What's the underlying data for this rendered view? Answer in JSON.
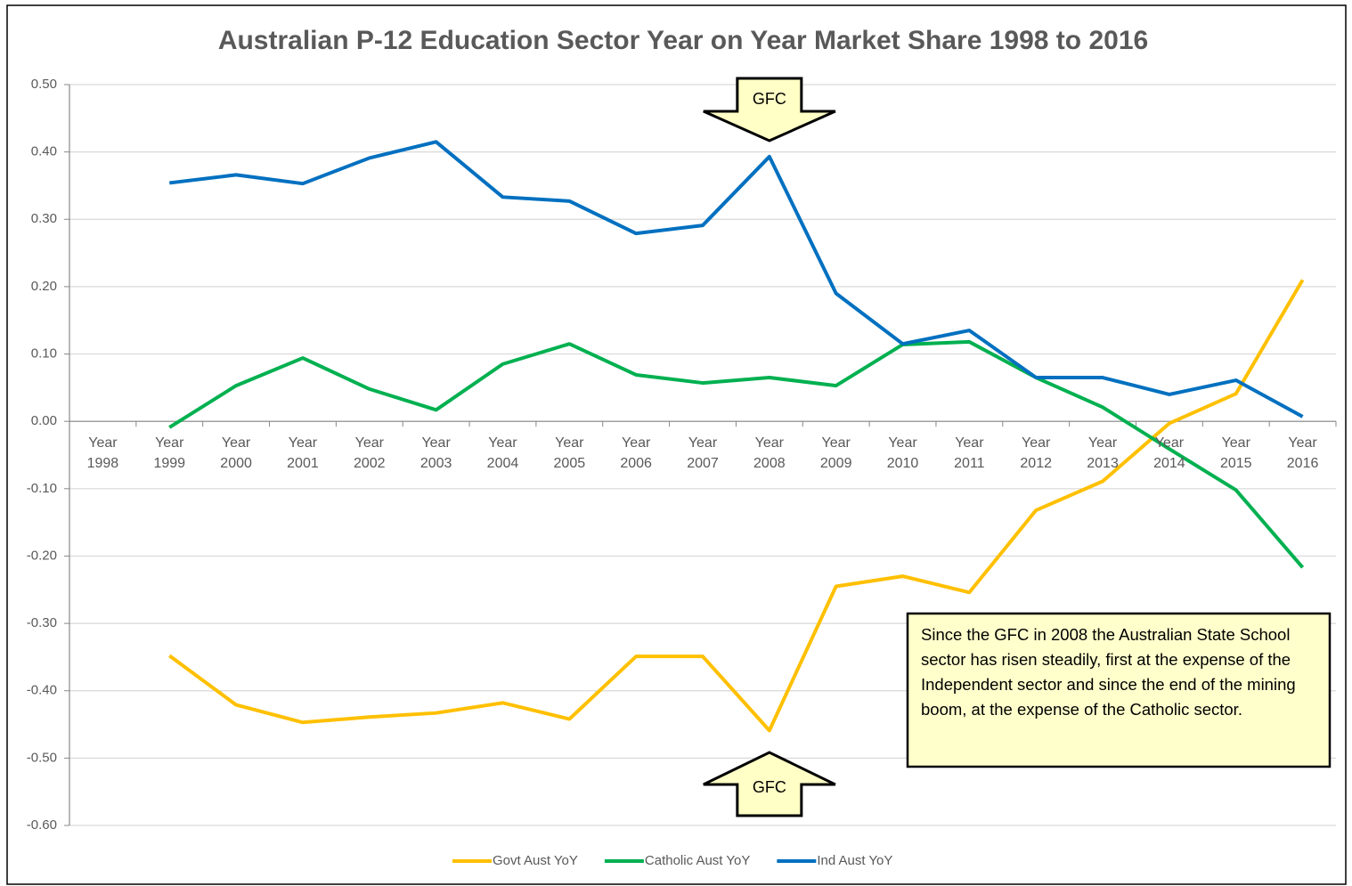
{
  "chart_data": {
    "type": "line",
    "title": "Australian P-12 Education Sector Year on Year Market Share 1998 to 2016",
    "categories": [
      "Year 1998",
      "Year 1999",
      "Year 2000",
      "Year 2001",
      "Year 2002",
      "Year 2003",
      "Year 2004",
      "Year 2005",
      "Year 2006",
      "Year 2007",
      "Year 2008",
      "Year 2009",
      "Year 2010",
      "Year 2011",
      "Year 2012",
      "Year 2013",
      "Year 2014",
      "Year 2015",
      "Year 2016"
    ],
    "series": [
      {
        "name": "Govt Aust YoY",
        "color": "#ffc000",
        "values": [
          null,
          -0.348,
          -0.421,
          -0.447,
          -0.439,
          -0.433,
          -0.418,
          -0.442,
          -0.349,
          -0.349,
          -0.459,
          -0.245,
          -0.23,
          -0.254,
          -0.132,
          -0.089,
          -0.003,
          0.041,
          0.21
        ]
      },
      {
        "name": "Catholic Aust YoY",
        "color": "#00b050",
        "values": [
          null,
          -0.009,
          0.053,
          0.094,
          0.048,
          0.017,
          0.085,
          0.115,
          0.069,
          0.057,
          0.065,
          0.053,
          0.114,
          0.118,
          0.065,
          0.021,
          -0.041,
          -0.102,
          -0.217
        ]
      },
      {
        "name": "Ind Aust YoY",
        "color": "#0070c0",
        "values": [
          null,
          0.354,
          0.366,
          0.353,
          0.391,
          0.415,
          0.333,
          0.327,
          0.279,
          0.291,
          0.393,
          0.19,
          0.115,
          0.135,
          0.065,
          0.065,
          0.04,
          0.061,
          0.007
        ]
      }
    ],
    "ylim": [
      -0.6,
      0.5
    ],
    "yticks": [
      {
        "value": 0.5,
        "label": "0.50"
      },
      {
        "value": 0.4,
        "label": "0.40"
      },
      {
        "value": 0.3,
        "label": "0.30"
      },
      {
        "value": 0.2,
        "label": "0.20"
      },
      {
        "value": 0.1,
        "label": "0.10"
      },
      {
        "value": 0,
        "label": "0.00"
      },
      {
        "value": -0.1,
        "label": "-0.10"
      },
      {
        "value": -0.2,
        "label": "-0.20"
      },
      {
        "value": -0.3,
        "label": "-0.30"
      },
      {
        "value": -0.4,
        "label": "-0.40"
      },
      {
        "value": -0.5,
        "label": "-0.50"
      },
      {
        "value": -0.6,
        "label": "-0.60"
      }
    ],
    "grid": true,
    "legend": "bottom",
    "annotations": [
      "GFC",
      "GFC",
      "Since the GFC in 2008 the Australian State School sector has risen steadily, first at the expense of the Independent sector and since the end of the mining boom, at the expense of the Catholic sector."
    ]
  }
}
